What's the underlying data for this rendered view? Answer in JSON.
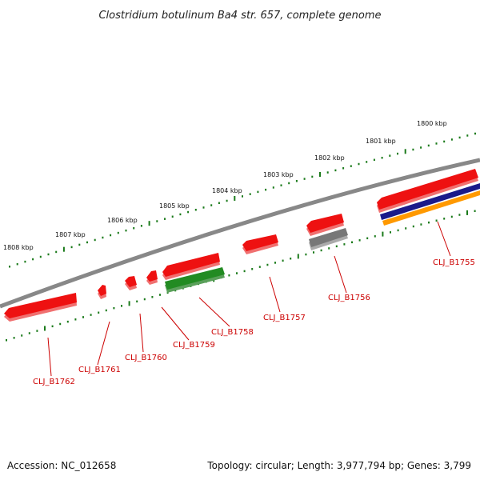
{
  "title": "Clostridium botulinum Ba4 str. 657, complete genome",
  "accession": "Accession: NC_012658",
  "summary": "Topology: circular; Length: 3,977,794 bp; Genes: 3,799",
  "scale": {
    "ticks": [
      {
        "label": "1808 kbp"
      },
      {
        "label": "1807 kbp"
      },
      {
        "label": "1806 kbp"
      },
      {
        "label": "1805 kbp"
      },
      {
        "label": "1804 kbp"
      },
      {
        "label": "1803 kbp"
      },
      {
        "label": "1802 kbp"
      },
      {
        "label": "1801 kbp"
      },
      {
        "label": "1800 kbp"
      }
    ]
  },
  "genes": [
    {
      "label": "CLJ_B1762",
      "color": "#ee1111"
    },
    {
      "label": "CLJ_B1761",
      "color": "#ee1111"
    },
    {
      "label": "CLJ_B1760",
      "color": "#ee1111"
    },
    {
      "label": "CLJ_B1759",
      "color": "#ee1111"
    },
    {
      "label": "CLJ_B1758",
      "color": "#228b22"
    },
    {
      "label": "CLJ_B1757",
      "color": "#ee1111"
    },
    {
      "label": "CLJ_B1756",
      "color": "#777777"
    },
    {
      "label": "CLJ_B1755",
      "color": "#ee1111"
    }
  ],
  "extra_tracks": {
    "navy": "#1a1a8a",
    "orange": "#ff9900",
    "backbone": "#888888",
    "tick_green": "#1a7a1a",
    "label_red": "#cc0000"
  }
}
